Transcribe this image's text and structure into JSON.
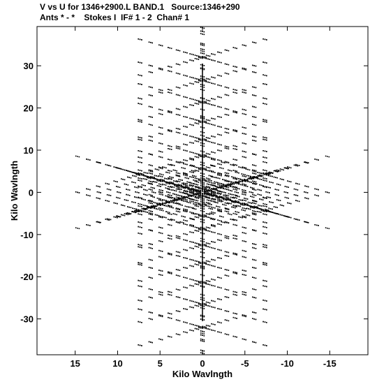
{
  "header": {
    "line1": "V vs U for 1346+2900.L BAND.1   Source:1346+290",
    "line2": "Ants * - *    Stokes I  IF# 1 - 2  Chan# 1"
  },
  "chart_data": {
    "type": "scatter",
    "title": "V vs U for 1346+2900.L BAND.1   Source:1346+290",
    "subtitle": "Ants * - *    Stokes I  IF# 1 - 2  Chan# 1",
    "xlabel": "Kilo Wavlngth",
    "ylabel": "Kilo Wavlngth",
    "x_reversed": true,
    "xlim": [
      19.5,
      -19.5
    ],
    "ylim": [
      -38.5,
      39.3
    ],
    "xticks": [
      15,
      10,
      5,
      0,
      -5,
      -10,
      -15
    ],
    "xtick_labels": [
      "15",
      "10",
      "5",
      "0",
      "-5",
      "-10",
      "-15"
    ],
    "yticks": [
      30,
      20,
      10,
      0,
      -10,
      -20,
      -30
    ],
    "ytick_labels": [
      "30",
      "20",
      "10",
      "0",
      "-10",
      "-20",
      "-30"
    ],
    "grid": false,
    "point_color": "#000000",
    "arms": [
      {
        "angle_deg": 90,
        "max_radius": 32
      },
      {
        "angle_deg": 150,
        "max_radius": 8.5
      },
      {
        "angle_deg": 210,
        "max_radius": 8.5
      },
      {
        "angle_deg": 270,
        "max_radius": 32
      },
      {
        "angle_deg": 330,
        "max_radius": 8.5
      },
      {
        "angle_deg": 30,
        "max_radius": 8.5
      }
    ]
  }
}
